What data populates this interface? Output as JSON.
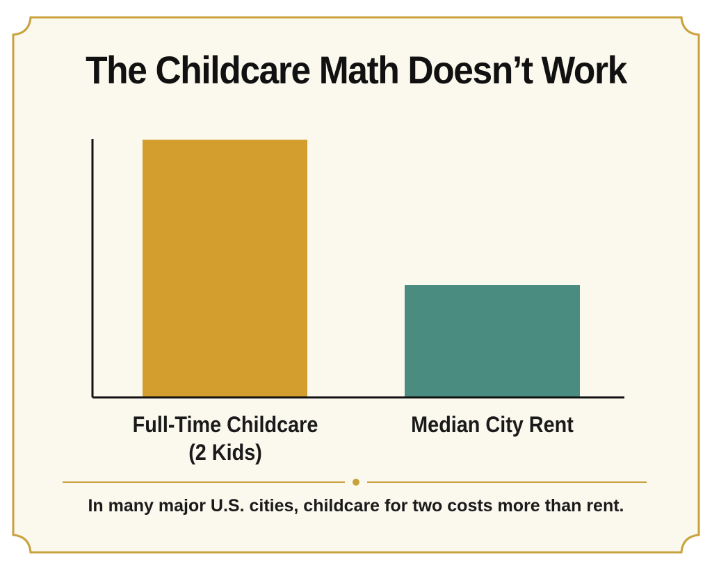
{
  "title": "The Childcare Math Doesn’t Work",
  "caption": "In many major U.S. cities, childcare for two costs more than rent.",
  "colors": {
    "background": "#FBF8EE",
    "frame": "#C9A23E",
    "childcare_bar": "#D49E2E",
    "rent_bar": "#4A8D80",
    "axis": "#111111"
  },
  "chart_data": {
    "type": "bar",
    "categories": [
      "Full-Time Childcare\n(2 Kids)",
      "Median City Rent"
    ],
    "values": [
      100,
      43.5
    ],
    "value_unit": "relative",
    "title": "The Childcare Math Doesn’t Work",
    "xlabel": "",
    "ylabel": "",
    "ylim": [
      0,
      100
    ],
    "grid": false,
    "legend": "none",
    "axis_ticks": false
  }
}
